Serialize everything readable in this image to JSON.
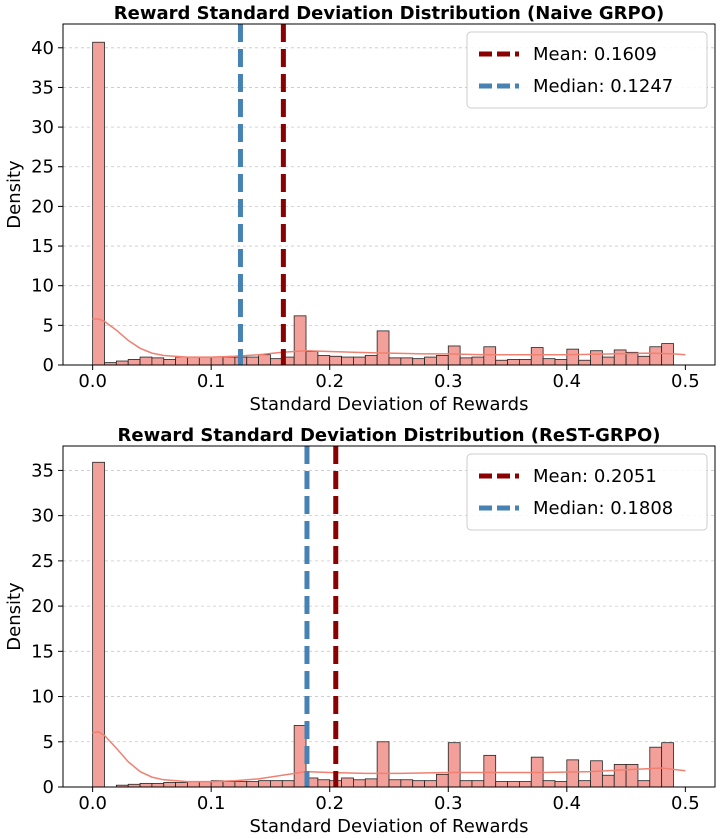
{
  "chart_data": [
    {
      "type": "bar",
      "title": "Reward Standard Deviation Distribution (Naive GRPO)",
      "xlabel": "Standard Deviation of Rewards",
      "ylabel": "Density",
      "xlim": [
        -0.025,
        0.525
      ],
      "ylim": [
        0,
        43
      ],
      "xticks": [
        0.0,
        0.1,
        0.2,
        0.3,
        0.4,
        0.5
      ],
      "xtick_labels": [
        "0.0",
        "0.1",
        "0.2",
        "0.3",
        "0.4",
        "0.5"
      ],
      "yticks": [
        0,
        5,
        10,
        15,
        20,
        25,
        30,
        35,
        40
      ],
      "ytick_labels": [
        "0",
        "5",
        "10",
        "15",
        "20",
        "25",
        "30",
        "35",
        "40"
      ],
      "grid": "y-dashed",
      "legend_placement": "top-right",
      "bin_width": 0.01,
      "bin_start": 0.0,
      "values": [
        40.7,
        0.3,
        0.5,
        0.7,
        1.0,
        0.9,
        0.7,
        1.0,
        1.0,
        1.0,
        1.0,
        1.0,
        1.0,
        1.0,
        1.3,
        0.8,
        1.0,
        6.2,
        1.7,
        1.2,
        1.1,
        1.0,
        1.0,
        1.2,
        4.3,
        0.9,
        0.9,
        0.8,
        1.0,
        1.2,
        2.4,
        0.9,
        1.0,
        2.3,
        0.6,
        0.7,
        0.7,
        2.2,
        0.8,
        0.7,
        2.0,
        0.6,
        1.8,
        1.0,
        1.9,
        1.6,
        1.1,
        2.3,
        2.7
      ],
      "kde": [
        [
          0.0,
          5.8
        ],
        [
          0.005,
          5.8
        ],
        [
          0.01,
          5.5
        ],
        [
          0.02,
          4.4
        ],
        [
          0.03,
          3.1
        ],
        [
          0.04,
          2.1
        ],
        [
          0.05,
          1.5
        ],
        [
          0.06,
          1.2
        ],
        [
          0.08,
          1.0
        ],
        [
          0.1,
          1.0
        ],
        [
          0.12,
          1.1
        ],
        [
          0.14,
          1.3
        ],
        [
          0.16,
          1.6
        ],
        [
          0.18,
          1.8
        ],
        [
          0.2,
          1.7
        ],
        [
          0.22,
          1.6
        ],
        [
          0.25,
          1.5
        ],
        [
          0.28,
          1.4
        ],
        [
          0.3,
          1.4
        ],
        [
          0.33,
          1.3
        ],
        [
          0.36,
          1.3
        ],
        [
          0.4,
          1.3
        ],
        [
          0.44,
          1.4
        ],
        [
          0.47,
          1.5
        ],
        [
          0.49,
          1.4
        ],
        [
          0.5,
          1.3
        ]
      ],
      "lines": [
        {
          "label": "Mean: 0.1609",
          "x": 0.1609,
          "color": "#8b0000"
        },
        {
          "label": "Median: 0.1247",
          "x": 0.1247,
          "color": "#4682b4"
        }
      ],
      "bar_color": "#f4a09a",
      "kde_color": "#f08070"
    },
    {
      "type": "bar",
      "title": "Reward Standard Deviation Distribution (ReST-GRPO)",
      "xlabel": "Standard Deviation of Rewards",
      "ylabel": "Density",
      "xlim": [
        -0.025,
        0.525
      ],
      "ylim": [
        0,
        37.7
      ],
      "xticks": [
        0.0,
        0.1,
        0.2,
        0.3,
        0.4,
        0.5
      ],
      "xtick_labels": [
        "0.0",
        "0.1",
        "0.2",
        "0.3",
        "0.4",
        "0.5"
      ],
      "yticks": [
        0,
        5,
        10,
        15,
        20,
        25,
        30,
        35
      ],
      "ytick_labels": [
        "0",
        "5",
        "10",
        "15",
        "20",
        "25",
        "30",
        "35"
      ],
      "grid": "y-dashed",
      "legend_placement": "top-right",
      "bin_width": 0.01,
      "bin_start": 0.0,
      "values": [
        35.9,
        0.0,
        0.2,
        0.3,
        0.4,
        0.4,
        0.5,
        0.5,
        0.6,
        0.6,
        0.7,
        0.6,
        0.6,
        0.6,
        0.7,
        0.7,
        0.7,
        6.8,
        1.0,
        0.8,
        0.7,
        1.0,
        0.8,
        0.9,
        5.0,
        0.8,
        0.8,
        0.7,
        0.7,
        1.4,
        4.9,
        0.7,
        0.7,
        3.5,
        0.6,
        0.6,
        0.6,
        3.3,
        0.7,
        0.6,
        3.0,
        0.7,
        2.9,
        1.3,
        2.5,
        2.5,
        0.7,
        4.4,
        4.9
      ],
      "kde": [
        [
          0.0,
          6.0
        ],
        [
          0.005,
          6.1
        ],
        [
          0.01,
          5.7
        ],
        [
          0.02,
          4.3
        ],
        [
          0.03,
          2.8
        ],
        [
          0.04,
          1.7
        ],
        [
          0.05,
          1.1
        ],
        [
          0.06,
          0.8
        ],
        [
          0.08,
          0.6
        ],
        [
          0.1,
          0.6
        ],
        [
          0.12,
          0.7
        ],
        [
          0.14,
          0.9
        ],
        [
          0.16,
          1.3
        ],
        [
          0.18,
          1.7
        ],
        [
          0.2,
          1.6
        ],
        [
          0.23,
          1.5
        ],
        [
          0.26,
          1.5
        ],
        [
          0.3,
          1.6
        ],
        [
          0.34,
          1.6
        ],
        [
          0.38,
          1.6
        ],
        [
          0.42,
          1.7
        ],
        [
          0.45,
          1.9
        ],
        [
          0.48,
          2.1
        ],
        [
          0.5,
          1.8
        ]
      ],
      "lines": [
        {
          "label": "Mean: 0.2051",
          "x": 0.2051,
          "color": "#8b0000"
        },
        {
          "label": "Median: 0.1808",
          "x": 0.1808,
          "color": "#4682b4"
        }
      ],
      "bar_color": "#f4a09a",
      "kde_color": "#f08070"
    }
  ]
}
